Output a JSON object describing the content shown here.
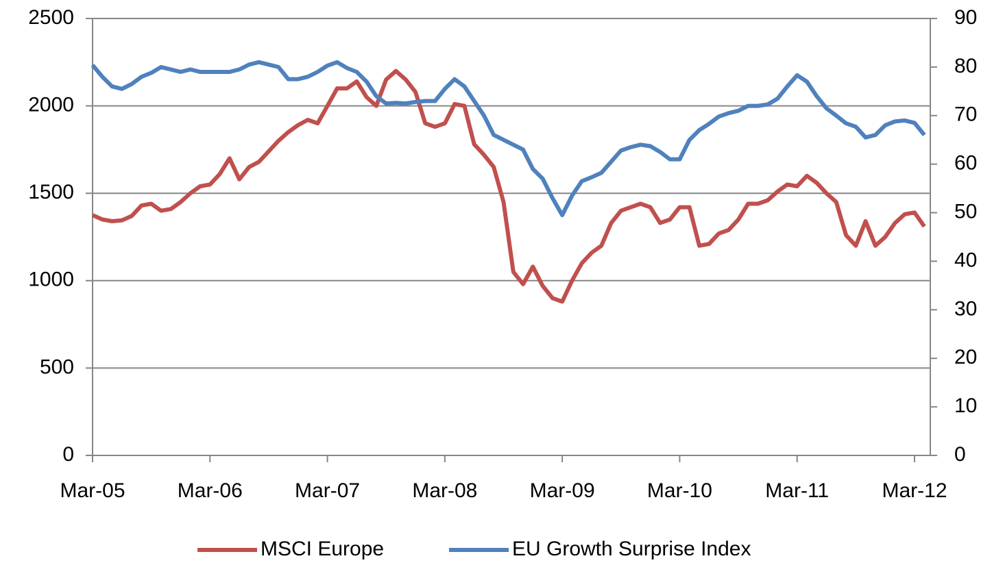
{
  "chart_data": {
    "type": "line",
    "categories": [
      "Mar-05",
      null,
      null,
      null,
      null,
      null,
      null,
      null,
      null,
      null,
      null,
      null,
      "Mar-06",
      null,
      null,
      null,
      null,
      null,
      null,
      null,
      null,
      null,
      null,
      null,
      "Mar-07",
      null,
      null,
      null,
      null,
      null,
      null,
      null,
      null,
      null,
      null,
      null,
      "Mar-08",
      null,
      null,
      null,
      null,
      null,
      null,
      null,
      null,
      null,
      null,
      null,
      "Mar-09",
      null,
      null,
      null,
      null,
      null,
      null,
      null,
      null,
      null,
      null,
      null,
      "Mar-10",
      null,
      null,
      null,
      null,
      null,
      null,
      null,
      null,
      null,
      null,
      null,
      "Mar-11",
      null,
      null,
      null,
      null,
      null,
      null,
      null,
      null,
      null,
      null,
      null,
      "Mar-12",
      null
    ],
    "series": [
      {
        "name": "MSCI Europe",
        "color": "#c0504d",
        "values": [
          1375,
          1350,
          1340,
          1345,
          1370,
          1430,
          1440,
          1400,
          1410,
          1450,
          1500,
          1540,
          1550,
          1610,
          1700,
          1580,
          1650,
          1680,
          1740,
          1800,
          1850,
          1890,
          1920,
          1900,
          2000,
          2100,
          2100,
          2140,
          2050,
          2000,
          2150,
          2200,
          2150,
          2080,
          1900,
          1880,
          1900,
          2010,
          2000,
          1780,
          1720,
          1650,
          1450,
          1050,
          980,
          1080,
          970,
          900,
          880,
          1000,
          1100,
          1160,
          1200,
          1330,
          1400,
          1420,
          1440,
          1420,
          1330,
          1350,
          1420,
          1420,
          1200,
          1210,
          1270,
          1290,
          1350,
          1440,
          1440,
          1460,
          1510,
          1550,
          1540,
          1600,
          1560,
          1500,
          1450,
          1260,
          1200,
          1340,
          1200,
          1250,
          1330,
          1380,
          1390,
          1310
        ]
      },
      {
        "name": "EU Growth Surprise Index",
        "color": "#4f81bd",
        "axis": "y2",
        "values": [
          80.4,
          78,
          76,
          75.5,
          76.5,
          78,
          78.8,
          80,
          79.5,
          79,
          79.5,
          79,
          79,
          79,
          79,
          79.5,
          80.5,
          81,
          80.5,
          80,
          77.5,
          77.5,
          78,
          79,
          80.3,
          81,
          79.8,
          79,
          77,
          74,
          72.5,
          72.6,
          72.5,
          72.8,
          73,
          73,
          75.5,
          77.5,
          76,
          73,
          70,
          66,
          65,
          64,
          63,
          59,
          57,
          53,
          49.5,
          53.5,
          56.5,
          57.3,
          58.2,
          60.5,
          62.8,
          63.5,
          64,
          63.7,
          62.5,
          61,
          61,
          65,
          67,
          68.3,
          69.8,
          70.5,
          71,
          72,
          72,
          72.3,
          73.5,
          76,
          78.3,
          77,
          74,
          71.5,
          70,
          68.4,
          67.7,
          65.5,
          66,
          68,
          68.8,
          69,
          68.5,
          66
        ]
      }
    ],
    "ylim": [
      0,
      2500
    ],
    "yticks": [
      0,
      500,
      1000,
      1500,
      2000,
      2500
    ],
    "y2lim": [
      0,
      90
    ],
    "y2ticks": [
      0,
      10,
      20,
      30,
      40,
      50,
      60,
      70,
      80,
      90
    ],
    "grid": true,
    "legend": "bottom"
  }
}
